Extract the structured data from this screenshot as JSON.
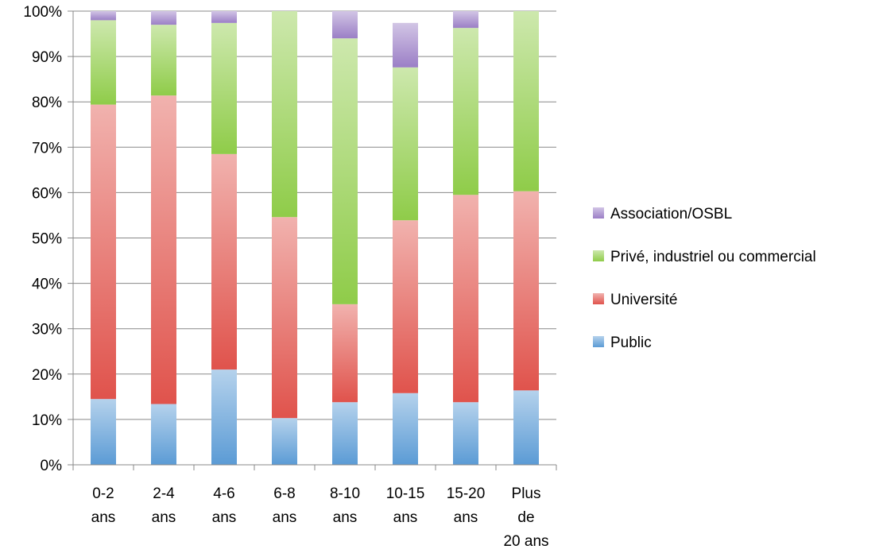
{
  "chart_data": {
    "type": "bar",
    "stacked": true,
    "categories": [
      [
        "0-2",
        "ans"
      ],
      [
        "2-4",
        "ans"
      ],
      [
        "4-6",
        "ans"
      ],
      [
        "6-8",
        "ans"
      ],
      [
        "8-10",
        "ans"
      ],
      [
        "10-15",
        "ans"
      ],
      [
        "15-20",
        "ans"
      ],
      [
        "Plus",
        "de",
        "20 ans"
      ]
    ],
    "series": [
      {
        "name": "Public",
        "color": "#5b9bd5",
        "values": [
          14.5,
          13.4,
          21.0,
          10.3,
          13.8,
          15.8,
          13.8,
          16.4
        ]
      },
      {
        "name": "Université",
        "color": "#e0534c",
        "values": [
          64.9,
          68.0,
          47.5,
          44.3,
          21.6,
          38.1,
          45.7,
          43.9
        ]
      },
      {
        "name": "Privé, industriel ou commercial",
        "color": "#8fcc49",
        "values": [
          18.6,
          15.6,
          28.9,
          45.4,
          58.6,
          33.7,
          36.8,
          39.7
        ]
      },
      {
        "name": "Association/OSBL",
        "color": "#9b7fc6",
        "values": [
          2.0,
          3.0,
          2.6,
          0.0,
          6.0,
          9.8,
          3.7,
          0.0
        ]
      }
    ],
    "y_ticks": [
      "0%",
      "10%",
      "20%",
      "30%",
      "40%",
      "50%",
      "60%",
      "70%",
      "80%",
      "90%",
      "100%"
    ],
    "ylim": [
      0,
      100
    ],
    "grid": true,
    "legend_position": "right"
  }
}
